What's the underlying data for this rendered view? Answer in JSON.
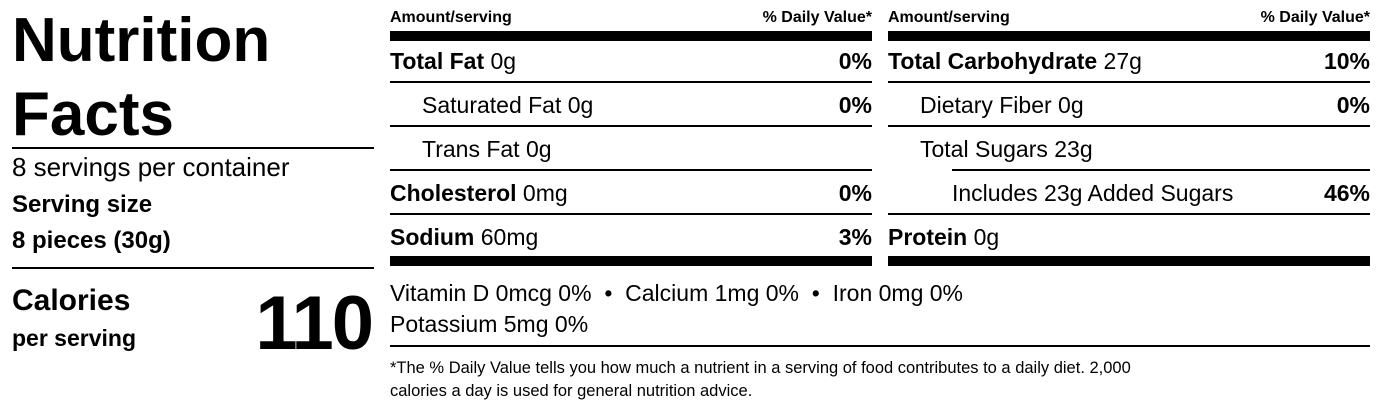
{
  "label": {
    "title_line1": "Nutrition",
    "title_line2": "Facts",
    "servings_per_container": "8 servings per container",
    "serving_size_label": "Serving size",
    "serving_size_value": "8 pieces (30g)",
    "calories_label": "Calories",
    "calories_sub": "per serving",
    "calories_value": "110"
  },
  "headers": {
    "amount": "Amount/serving",
    "daily_value": "% Daily Value*"
  },
  "left_nutrients": [
    {
      "name": "Total Fat",
      "amount": "0g",
      "dv": "0%"
    },
    {
      "name": "Saturated Fat",
      "amount": "0g",
      "dv": "0%"
    },
    {
      "name": "Trans Fat",
      "amount": "0g",
      "dv": ""
    },
    {
      "name": "Cholesterol",
      "amount": "0mg",
      "dv": "0%"
    },
    {
      "name": "Sodium",
      "amount": "60mg",
      "dv": "3%"
    }
  ],
  "right_nutrients": [
    {
      "name": "Total Carbohydrate",
      "amount": "27g",
      "dv": "10%"
    },
    {
      "name": "Dietary Fiber",
      "amount": "0g",
      "dv": "0%"
    },
    {
      "name": "Total Sugars",
      "amount": "23g",
      "dv": ""
    },
    {
      "name": "Includes 23g Added Sugars",
      "amount": "",
      "dv": "46%"
    },
    {
      "name": "Protein",
      "amount": "0g",
      "dv": ""
    }
  ],
  "vitamins": {
    "line1": "Vitamin D 0mcg 0%  •  Calcium 1mg 0%  •  Iron 0mg 0%",
    "line2": "Potassium 5mg 0%"
  },
  "footnote": {
    "line1": "*The % Daily Value tells you how much a nutrient in a serving of food contributes to a daily diet. 2,000",
    "line2": "calories a day is used for general nutrition advice."
  }
}
